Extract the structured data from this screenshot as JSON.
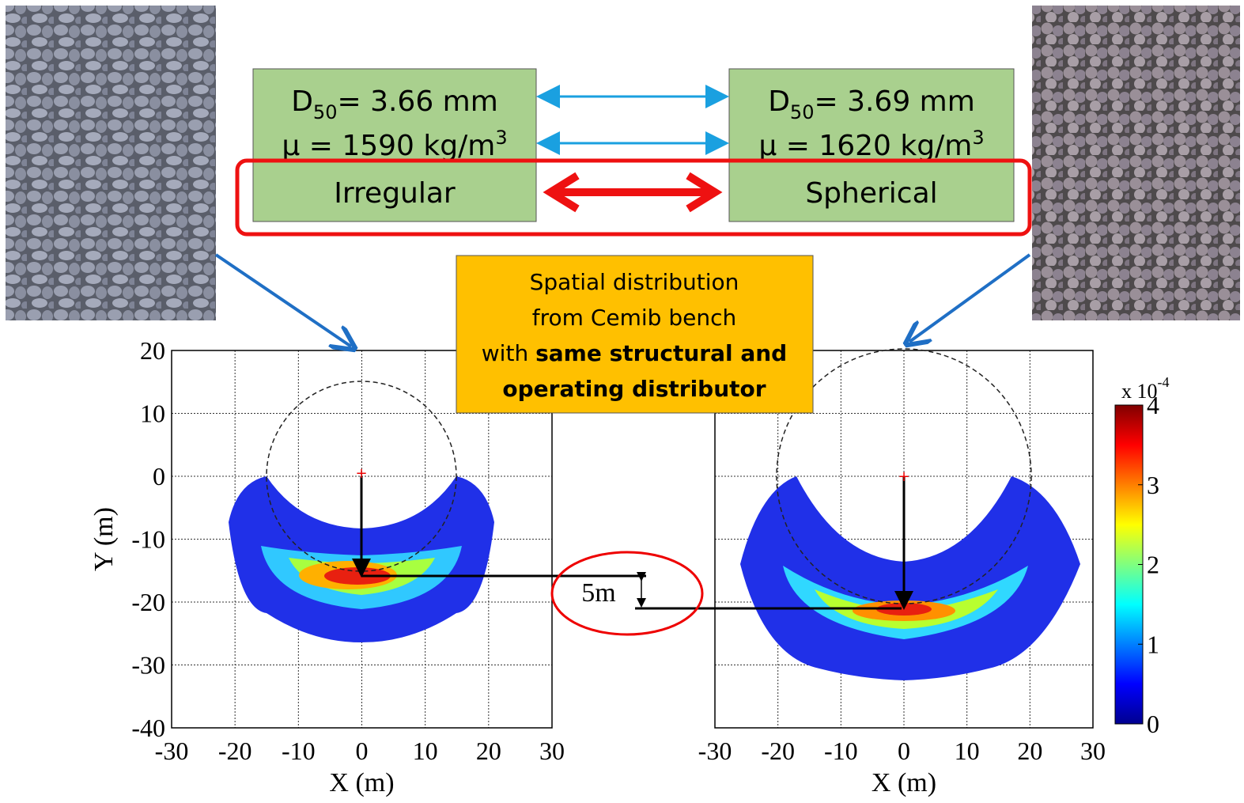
{
  "boxes": {
    "left": {
      "d_symbol": "D",
      "d_sub": "50",
      "d_value": "= 3.66 mm",
      "mu": "µ = 1590 kg/m",
      "mu_sup": "3",
      "shape": "Irregular"
    },
    "right": {
      "d_symbol": "D",
      "d_sub": "50",
      "d_value": "= 3.69 mm",
      "mu": "µ = 1620 kg/m",
      "mu_sup": "3",
      "shape": "Spherical"
    }
  },
  "callout": {
    "line1": "Spatial distribution",
    "line2": "from Cemib bench",
    "line3_prefix": "with ",
    "line3_bold": "same structural and",
    "line4_bold": "operating distributor"
  },
  "annotation": "5m",
  "chart_data": [
    {
      "type": "heatmap",
      "xlabel": "X (m)",
      "ylabel": "Y (m)",
      "xlim": [
        -30,
        30
      ],
      "ylim": [
        -40,
        20
      ],
      "xticks": [
        -30,
        -20,
        -10,
        0,
        10,
        20,
        30
      ],
      "yticks": [
        -40,
        -30,
        -20,
        -10,
        0,
        10,
        20
      ],
      "grid": true
    },
    {
      "type": "heatmap",
      "xlabel": "X (m)",
      "xlim": [
        -30,
        30
      ],
      "ylim": [
        -40,
        20
      ],
      "xticks": [
        -30,
        -20,
        -10,
        0,
        10,
        20,
        30
      ],
      "yticks": [
        -40,
        -30,
        -20,
        -10,
        0,
        10,
        20
      ],
      "grid": true
    }
  ],
  "colorbar": {
    "lim": [
      0,
      4
    ],
    "ticks": [
      0,
      1,
      2,
      3,
      4
    ],
    "multiplier": "x 10",
    "exponent": "-4",
    "colormap": "jet"
  }
}
